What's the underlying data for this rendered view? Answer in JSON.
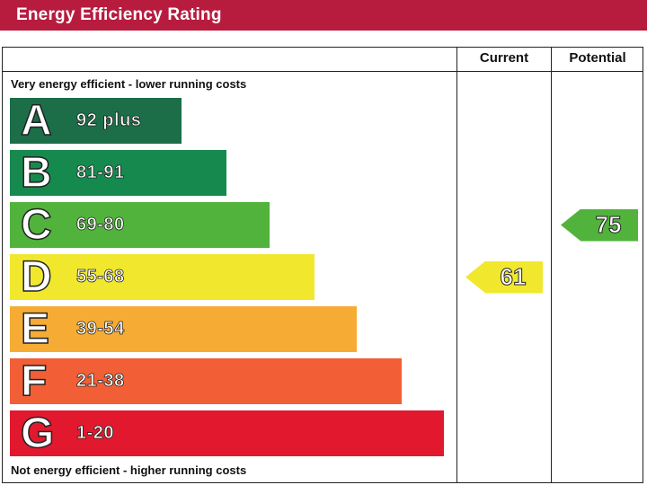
{
  "title": "Energy Efficiency Rating",
  "chart_data": {
    "type": "bar",
    "columns": {
      "current": "Current",
      "potential": "Potential"
    },
    "top_caption": "Very energy efficient - lower running costs",
    "bottom_caption": "Not energy efficient - higher running costs",
    "bands": [
      {
        "letter": "A",
        "range": "92 plus",
        "color": "#1c6e48"
      },
      {
        "letter": "B",
        "range": "81-91",
        "color": "#168a4e"
      },
      {
        "letter": "C",
        "range": "69-80",
        "color": "#51b33c"
      },
      {
        "letter": "D",
        "range": "55-68",
        "color": "#f1e82e"
      },
      {
        "letter": "E",
        "range": "39-54",
        "color": "#f6ac34"
      },
      {
        "letter": "F",
        "range": "21-38",
        "color": "#f25e36"
      },
      {
        "letter": "G",
        "range": "1-20",
        "color": "#e2182e"
      }
    ],
    "current": {
      "value": "61",
      "band": "D"
    },
    "potential": {
      "value": "75",
      "band": "C"
    }
  }
}
